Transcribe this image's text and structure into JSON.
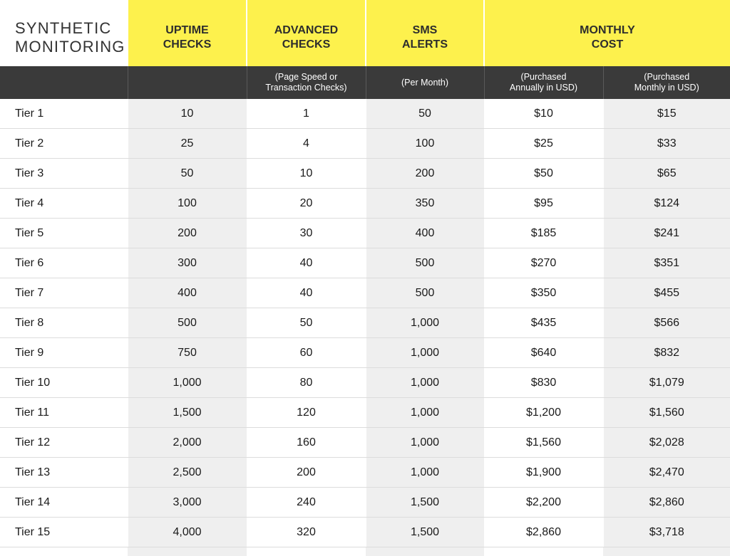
{
  "title": {
    "line1": "SYNTHETIC",
    "line2": "MONITORING"
  },
  "headers": [
    {
      "line1": "UPTIME",
      "line2": "CHECKS"
    },
    {
      "line1": "ADVANCED",
      "line2": "CHECKS"
    },
    {
      "line1": "SMS",
      "line2": "ALERTS"
    },
    {
      "line1": "MONTHLY",
      "line2": "COST"
    }
  ],
  "subheaders": [
    {
      "line1": "",
      "line2": ""
    },
    {
      "line1": "",
      "line2": ""
    },
    {
      "line1": "(Page Speed or",
      "line2": "Transaction Checks)"
    },
    {
      "line1": "(Per Month)",
      "line2": ""
    },
    {
      "line1": "(Purchased",
      "line2": "Annually in USD)"
    },
    {
      "line1": "(Purchased",
      "line2": "Monthly in USD)"
    }
  ],
  "rows": [
    [
      "Tier 1",
      "10",
      "1",
      "50",
      "$10",
      "$15"
    ],
    [
      "Tier 2",
      "25",
      "4",
      "100",
      "$25",
      "$33"
    ],
    [
      "Tier 3",
      "50",
      "10",
      "200",
      "$50",
      "$65"
    ],
    [
      "Tier 4",
      "100",
      "20",
      "350",
      "$95",
      "$124"
    ],
    [
      "Tier 5",
      "200",
      "30",
      "400",
      "$185",
      "$241"
    ],
    [
      "Tier 6",
      "300",
      "40",
      "500",
      "$270",
      "$351"
    ],
    [
      "Tier 7",
      "400",
      "40",
      "500",
      "$350",
      "$455"
    ],
    [
      "Tier 8",
      "500",
      "50",
      "1,000",
      "$435",
      "$566"
    ],
    [
      "Tier 9",
      "750",
      "60",
      "1,000",
      "$640",
      "$832"
    ],
    [
      "Tier 10",
      "1,000",
      "80",
      "1,000",
      "$830",
      "$1,079"
    ],
    [
      "Tier 11",
      "1,500",
      "120",
      "1,000",
      "$1,200",
      "$1,560"
    ],
    [
      "Tier 12",
      "2,000",
      "160",
      "1,000",
      "$1,560",
      "$2,028"
    ],
    [
      "Tier 13",
      "2,500",
      "200",
      "1,000",
      "$1,900",
      "$2,470"
    ],
    [
      "Tier 14",
      "3,000",
      "240",
      "1,500",
      "$2,200",
      "$2,860"
    ],
    [
      "Tier 15",
      "4,000",
      "320",
      "1,500",
      "$2,860",
      "$3,718"
    ]
  ],
  "colors": {
    "header_yellow": "#fdf14d",
    "subheader_dark": "#3a3a3a",
    "column_shade": "#efefef"
  }
}
